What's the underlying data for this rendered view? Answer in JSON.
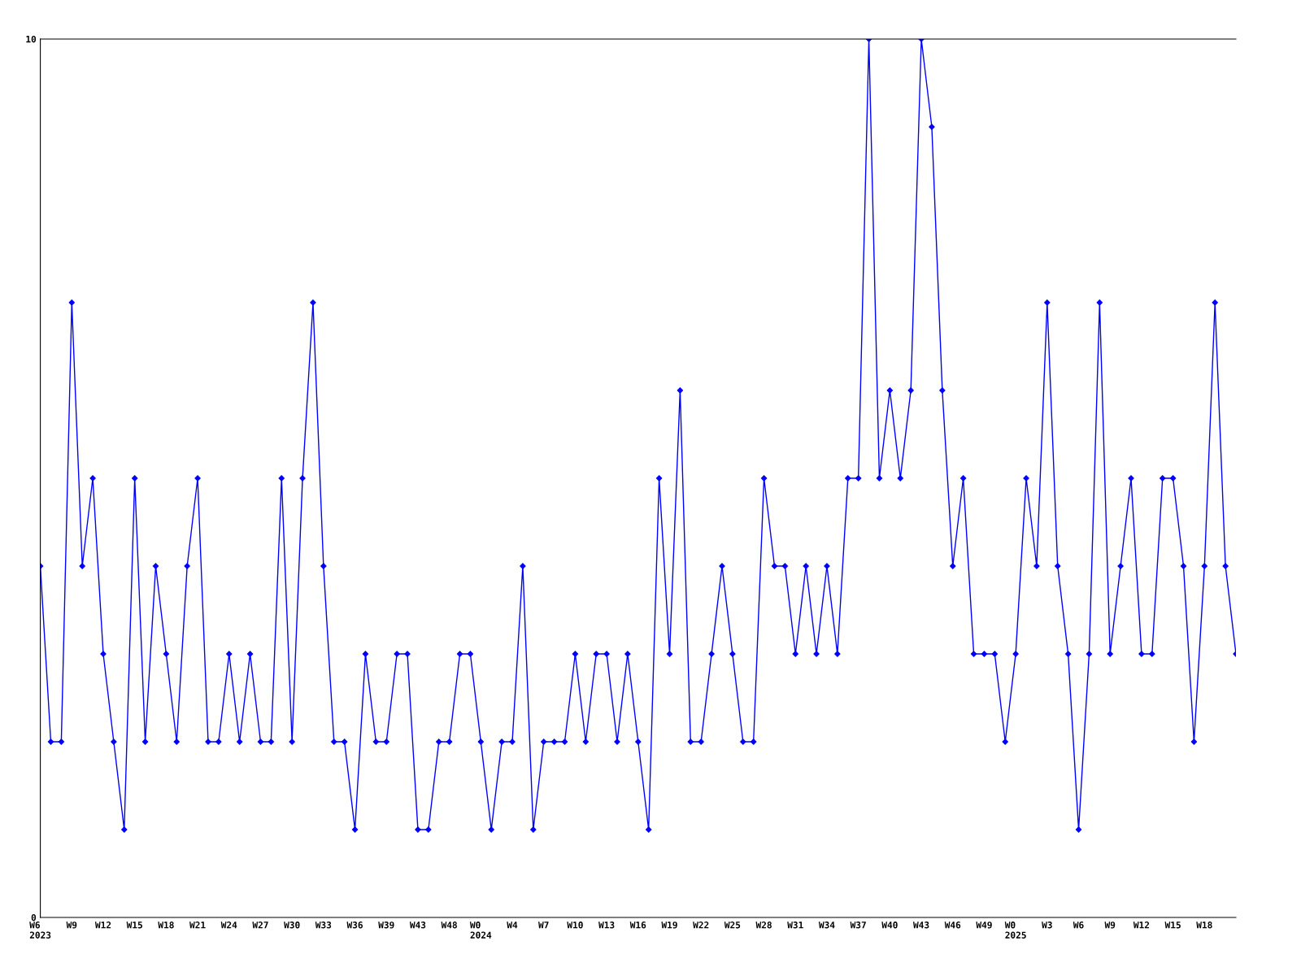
{
  "chart_data": {
    "type": "line",
    "categories": [
      "W6\n2023",
      null,
      null,
      "W9",
      null,
      null,
      "W12",
      null,
      null,
      "W15",
      null,
      null,
      "W18",
      null,
      null,
      "W21",
      null,
      null,
      "W24",
      null,
      null,
      "W27",
      null,
      null,
      "W30",
      null,
      null,
      "W33",
      null,
      null,
      "W36",
      null,
      null,
      "W39",
      null,
      null,
      "W43",
      null,
      null,
      "W48",
      null,
      null,
      "W0\n2024",
      null,
      null,
      "W4",
      null,
      null,
      "W7",
      null,
      null,
      "W10",
      null,
      null,
      "W13",
      null,
      null,
      "W16",
      null,
      null,
      "W19",
      null,
      null,
      "W22",
      null,
      null,
      "W25",
      null,
      null,
      "W28",
      null,
      null,
      "W31",
      null,
      null,
      "W34",
      null,
      null,
      "W37",
      null,
      null,
      "W40",
      null,
      null,
      "W43",
      null,
      null,
      "W46",
      null,
      null,
      "W49",
      null,
      null,
      "W0\n2025",
      null,
      null,
      "W3",
      null,
      null,
      "W6",
      null,
      null,
      "W9",
      null,
      null,
      "W12",
      null,
      null,
      "W15",
      null,
      null,
      "W18",
      null,
      null,
      null
    ],
    "series": [
      {
        "color": "#0000ff",
        "values": [
          4,
          2,
          2,
          7,
          4,
          5,
          3,
          2,
          1,
          5,
          2,
          4,
          3,
          2,
          4,
          5,
          2,
          2,
          3,
          2,
          3,
          2,
          2,
          5,
          2,
          5,
          7,
          4,
          2,
          2,
          1,
          3,
          2,
          2,
          3,
          3,
          1,
          1,
          2,
          2,
          3,
          3,
          2,
          1,
          2,
          2,
          4,
          1,
          2,
          2,
          2,
          3,
          2,
          3,
          3,
          2,
          3,
          2,
          1,
          5,
          3,
          6,
          2,
          2,
          3,
          4,
          3,
          2,
          2,
          5,
          4,
          4,
          3,
          4,
          3,
          4,
          3,
          5,
          5,
          10,
          5,
          6,
          5,
          6,
          10,
          9,
          6,
          4,
          5,
          3,
          3,
          3,
          2,
          3,
          5,
          4,
          7,
          4,
          3,
          1,
          3,
          7,
          3,
          4,
          5,
          3,
          3,
          5,
          5,
          4,
          2,
          4,
          7,
          4,
          3
        ]
      }
    ],
    "ylim": [
      0,
      10
    ],
    "yticks": [
      0,
      10
    ],
    "grid": false,
    "marker": "diamond",
    "line_style": "solid"
  }
}
